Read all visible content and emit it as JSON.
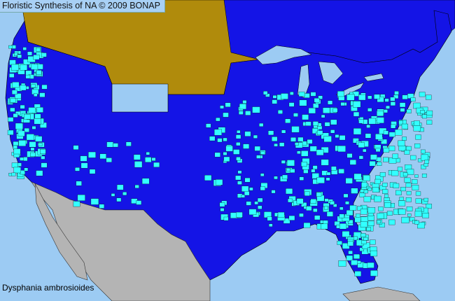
{
  "header": {
    "title": "Floristic Synthesis of NA © 2009 BONAP"
  },
  "species": {
    "name": "Dysphania ambrosioides"
  },
  "colors": {
    "ocean": "#9ccbf3",
    "canada_no_data": "#b08b0c",
    "present_state": "#1414e6",
    "present_county": "#33ffff",
    "mexico": "#b4b4b4",
    "lakes": "#9ccbf3"
  }
}
